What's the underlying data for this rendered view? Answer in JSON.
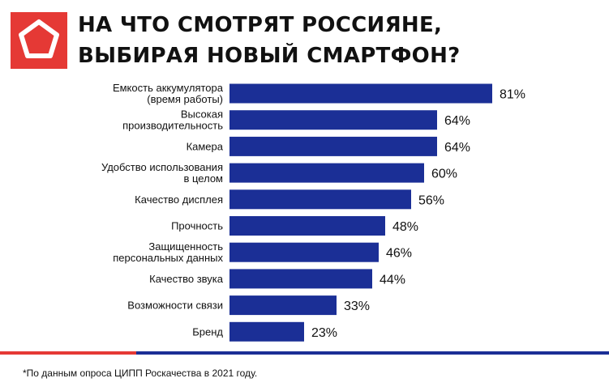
{
  "title_lines": [
    "НА ЧТО СМОТРЯТ РОССИЯНЕ,",
    "ВЫБИРАЯ НОВЫЙ СМАРТФОН?"
  ],
  "footnote": "*По данным опроса ЦИПП Роскачества в 2021 году.",
  "colors": {
    "bar": "#1b2f96",
    "accent": "#e53935",
    "text": "#111111"
  },
  "chart_data": {
    "type": "bar",
    "orientation": "horizontal",
    "title": "НА ЧТО СМОТРЯТ РОССИЯНЕ, ВЫБИРАЯ НОВЫЙ СМАРТФОН?",
    "categories": [
      [
        "Емкость аккумулятора",
        "(время работы)"
      ],
      [
        "Высокая",
        "производительность"
      ],
      [
        "Камера"
      ],
      [
        "Удобство использования",
        "в целом"
      ],
      [
        "Качество дисплея"
      ],
      [
        "Прочность"
      ],
      [
        "Защищенность",
        "персональных данных"
      ],
      [
        "Качество звука"
      ],
      [
        "Возможности связи"
      ],
      [
        "Бренд"
      ]
    ],
    "values": [
      81,
      64,
      64,
      60,
      56,
      48,
      46,
      44,
      33,
      23
    ],
    "value_labels": [
      "81%",
      "64%",
      "64%",
      "60%",
      "56%",
      "48%",
      "46%",
      "44%",
      "33%",
      "23%"
    ],
    "unit": "%",
    "xlim": [
      0,
      100
    ]
  }
}
